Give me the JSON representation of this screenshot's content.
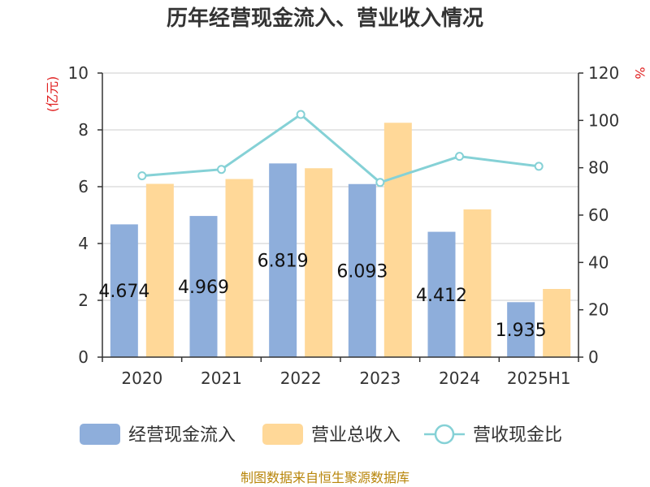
{
  "chart_data": {
    "type": "bar",
    "title": "历年经营现金流入、营业收入情况",
    "categories": [
      "2020",
      "2021",
      "2022",
      "2023",
      "2024",
      "2025H1"
    ],
    "y_left_label": "(亿元)",
    "y_right_label": "%",
    "y_left_lim": [
      0,
      10
    ],
    "y_left_ticks": [
      "0",
      "2",
      "4",
      "6",
      "8",
      "10"
    ],
    "y_right_lim": [
      0,
      120
    ],
    "y_right_ticks": [
      "0",
      "20",
      "40",
      "60",
      "80",
      "100",
      "120"
    ],
    "grid": true,
    "legend_position": "bottom",
    "series": [
      {
        "name": "经营现金流入",
        "type": "bar",
        "axis": "left",
        "values": [
          4.674,
          4.969,
          6.819,
          6.093,
          4.412,
          1.935
        ],
        "value_labels": [
          "4.674",
          "4.969",
          "6.819",
          "6.093",
          "4.412",
          "1.935"
        ],
        "color": "#8eaedb"
      },
      {
        "name": "营业总收入",
        "type": "bar",
        "axis": "left",
        "values": [
          6.1,
          6.27,
          6.65,
          8.25,
          5.2,
          2.4
        ],
        "color": "#ffd898"
      },
      {
        "name": "营收现金比",
        "type": "line",
        "axis": "right",
        "values": [
          76.6,
          79.3,
          102.5,
          73.8,
          84.8,
          80.6
        ],
        "color": "#85d1d6"
      }
    ],
    "source": "制图数据来自恒生聚源数据库",
    "colors": {
      "axis": "#333333",
      "grid": "#cccccc",
      "unit_label": "#e02020",
      "source": "#b8860b"
    }
  }
}
